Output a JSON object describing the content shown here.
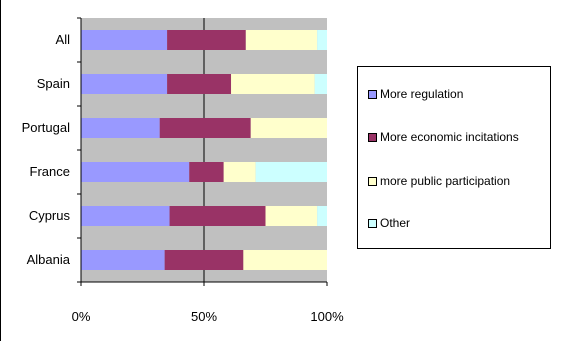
{
  "chart_data": {
    "type": "bar",
    "orientation": "horizontal",
    "stacked": "percent",
    "categories": [
      "All",
      "Spain",
      "Portugal",
      "France",
      "Cyprus",
      "Albania"
    ],
    "series": [
      {
        "name": "More regulation",
        "color": "#9999ff",
        "values": [
          35,
          35,
          32,
          44,
          36,
          34
        ]
      },
      {
        "name": "More economic incitations",
        "color": "#993366",
        "values": [
          32,
          26,
          37,
          14,
          39,
          32
        ]
      },
      {
        "name": "more public participation",
        "color": "#ffffcc",
        "values": [
          29,
          34,
          31,
          13,
          21,
          34
        ]
      },
      {
        "name": "Other",
        "color": "#ccffff",
        "values": [
          4,
          5,
          0,
          29,
          4,
          0
        ]
      }
    ],
    "xlim": [
      0,
      100
    ],
    "xticks": [
      "0%",
      "50%",
      "100%"
    ],
    "grid": "vertical at 50%",
    "plot_background": "#c0c0c0",
    "legend": "right",
    "title": "",
    "xlabel": "",
    "ylabel": ""
  }
}
